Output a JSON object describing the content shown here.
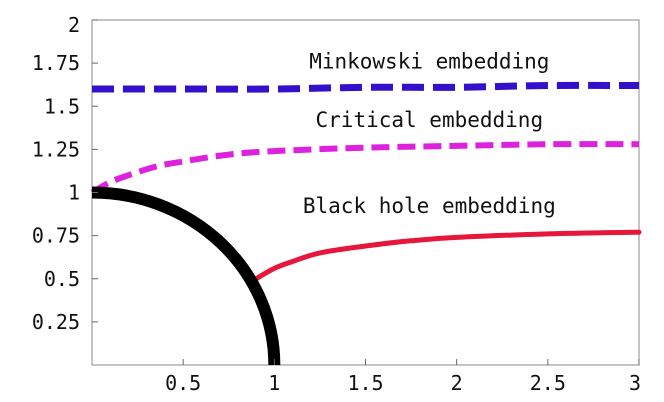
{
  "chart_data": {
    "type": "line",
    "xlim": [
      0,
      3
    ],
    "ylim": [
      0,
      2
    ],
    "x_ticks": [
      0.5,
      1,
      1.5,
      2,
      2.5,
      3
    ],
    "x_tick_labels": [
      "0.5",
      "1",
      "1.5",
      "2",
      "2.5",
      "3"
    ],
    "y_ticks": [
      0.25,
      0.5,
      0.75,
      1,
      1.25,
      1.5,
      1.75,
      2
    ],
    "y_tick_labels": [
      "0.25",
      "0.5",
      "0.75",
      "1",
      "1.25",
      "1.5",
      "1.75",
      "2"
    ],
    "grid": false,
    "series": [
      {
        "name": "Minkowski embedding",
        "color": "#3311cc",
        "style": "dashed",
        "x": [
          0,
          0.5,
          1,
          1.5,
          2,
          2.5,
          3
        ],
        "y": [
          1.6,
          1.6,
          1.6,
          1.61,
          1.61,
          1.62,
          1.62
        ]
      },
      {
        "name": "Critical embedding",
        "color": "#dd22dd",
        "style": "dashed",
        "x": [
          0,
          0.1,
          0.2,
          0.35,
          0.5,
          0.75,
          1,
          1.5,
          2,
          2.5,
          3
        ],
        "y": [
          1.0,
          1.06,
          1.1,
          1.15,
          1.18,
          1.22,
          1.24,
          1.26,
          1.27,
          1.28,
          1.28
        ]
      },
      {
        "name": "Black hole embedding",
        "color": "#e6163c",
        "style": "solid",
        "x": [
          0.9,
          1.0,
          1.1,
          1.25,
          1.5,
          1.75,
          2,
          2.5,
          3
        ],
        "y": [
          0.5,
          0.56,
          0.6,
          0.65,
          0.69,
          0.72,
          0.74,
          0.76,
          0.77
        ]
      },
      {
        "name": "horizon",
        "color": "#000000",
        "style": "solid",
        "shape": "quarter-circle",
        "radius": 1
      }
    ],
    "annotations": [
      {
        "text": "Minkowski embedding",
        "x": 1.85,
        "y": 1.72
      },
      {
        "text": "Critical embedding",
        "x": 1.85,
        "y": 1.38
      },
      {
        "text": "Black hole embedding",
        "x": 1.85,
        "y": 0.88
      }
    ]
  }
}
